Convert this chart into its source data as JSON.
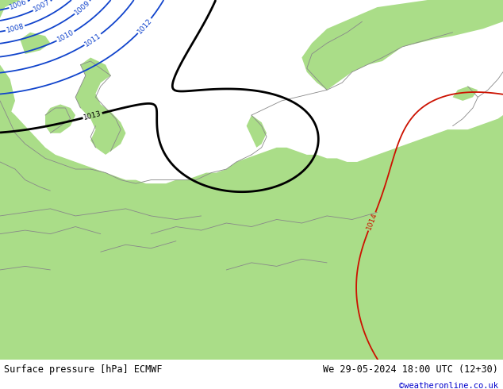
{
  "title_left": "Surface pressure [hPa] ECMWF",
  "title_right": "We 29-05-2024 18:00 UTC (12+30)",
  "credit": "©weatheronline.co.uk",
  "sea_color": "#e0e0e8",
  "land_color": "#aadd88",
  "contour_color_blue": "#1144cc",
  "contour_color_black": "#000000",
  "contour_color_red": "#cc1100",
  "border_color": "#888888",
  "bottom_bar_color": "#b8ddb8",
  "bottom_text_color": "#000000",
  "credit_color": "#0000cc",
  "figsize": [
    6.34,
    4.9
  ],
  "dpi": 100
}
